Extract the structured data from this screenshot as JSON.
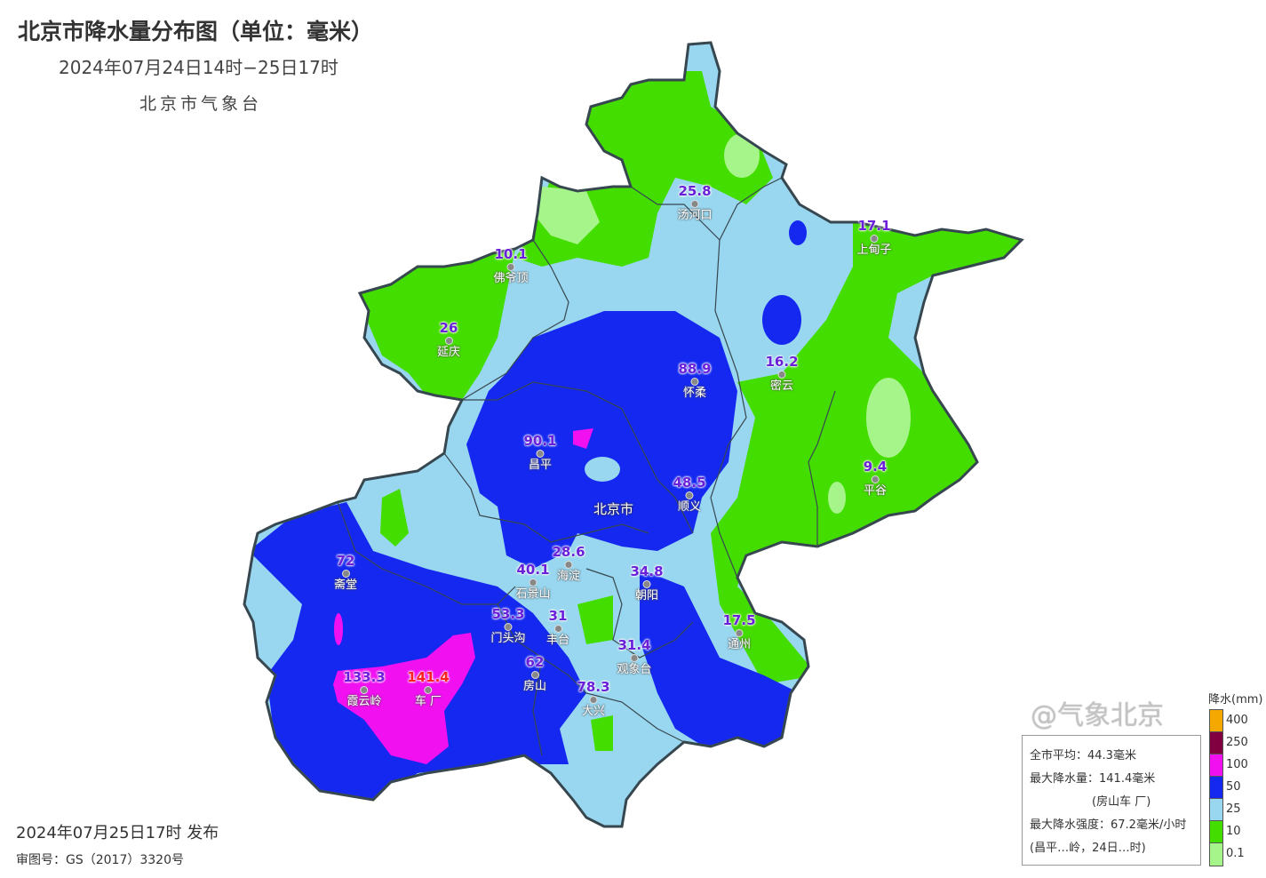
{
  "header": {
    "title": "北京市降水量分布图（单位：毫米）",
    "subtitle": "2024年07月24日14时−25日17时",
    "org": "北京市气象台"
  },
  "footer": {
    "published": "2024年07月25日17时 发布",
    "map_cert": "审图号：GS（2017）3320号"
  },
  "capital_label": "北京市",
  "stations": [
    {
      "name": "汤河口",
      "value": "25.8"
    },
    {
      "name": "上甸子",
      "value": "17.1"
    },
    {
      "name": "佛爷顶",
      "value": "10.1"
    },
    {
      "name": "延庆",
      "value": "26"
    },
    {
      "name": "怀柔",
      "value": "88.9"
    },
    {
      "name": "密云",
      "value": "16.2"
    },
    {
      "name": "昌平",
      "value": "90.1"
    },
    {
      "name": "平谷",
      "value": "9.4"
    },
    {
      "name": "顺义",
      "value": "48.5"
    },
    {
      "name": "斋堂",
      "value": "72"
    },
    {
      "name": "海淀",
      "value": "28.6"
    },
    {
      "name": "石景山",
      "value": "40.1"
    },
    {
      "name": "朝阳",
      "value": "34.8"
    },
    {
      "name": "门头沟",
      "value": "53.3"
    },
    {
      "name": "丰台",
      "value": "31"
    },
    {
      "name": "通州",
      "value": "17.5"
    },
    {
      "name": "观象台",
      "value": "31.4"
    },
    {
      "name": "房山",
      "value": "62"
    },
    {
      "name": "霞云岭",
      "value": "133.3"
    },
    {
      "name": "车 厂",
      "value": "141.4"
    },
    {
      "name": "大兴",
      "value": "78.3"
    }
  ],
  "info_box": {
    "avg": "全市平均：44.3毫米",
    "max": "最大降水量：141.4毫米",
    "max_station": "(房山车 厂)",
    "max_intensity": "最大降水强度：67.2毫米/小时",
    "intensity_station": "(昌平…岭，24日…时)"
  },
  "legend": {
    "title": "降水(mm)",
    "levels": [
      {
        "label": "400",
        "color": "#f5a800"
      },
      {
        "label": "250",
        "color": "#800040"
      },
      {
        "label": "100",
        "color": "#f010f0"
      },
      {
        "label": "50",
        "color": "#1428f0"
      },
      {
        "label": "25",
        "color": "#99d6ef"
      },
      {
        "label": "10",
        "color": "#44dd00"
      },
      {
        "label": "0.1",
        "color": "#a6f58a"
      }
    ]
  },
  "watermark": "@气象北京"
}
